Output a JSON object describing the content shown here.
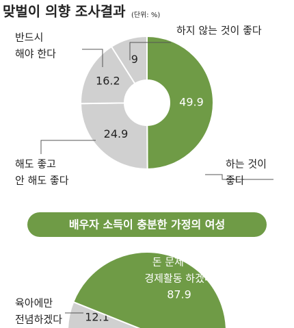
{
  "chart_data": [
    {
      "type": "donut",
      "title": "맞벌이 의향 조사결과",
      "subtitle": "(단위: %)",
      "categories": [
        [
          "하는 것이",
          "좋다"
        ],
        [
          "해도 좋고",
          "안 해도 좋다"
        ],
        [
          "반드시",
          "해야 한다"
        ],
        [
          "하지 않는 것이 좋다"
        ]
      ],
      "values": [
        49.9,
        24.9,
        16.2,
        9
      ],
      "colors": [
        "#6f9b46",
        "#d0d0d0",
        "#d0d0d0",
        "#d0d0d0"
      ]
    },
    {
      "type": "semicircle",
      "title": "배우자 소득이 충분한 가정의 여성",
      "categories": [
        [
          "육아에만",
          "전념하겠다"
        ],
        [
          "돈 문제 떠나",
          "경제활동 하겠다"
        ]
      ],
      "values": [
        12.1,
        87.9
      ],
      "colors": [
        "#d0d0d0",
        "#6f9b46"
      ]
    }
  ]
}
